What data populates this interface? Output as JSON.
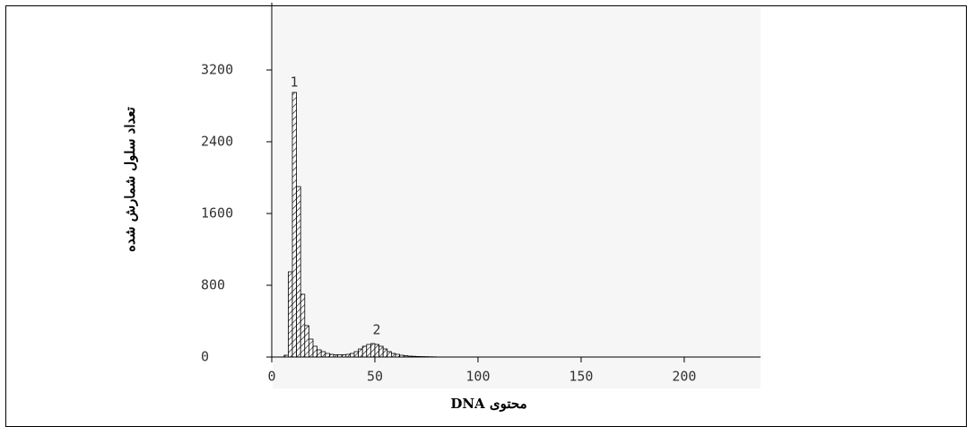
{
  "chart_data": {
    "type": "histogram",
    "x_label": "محتوی DNA",
    "y_label": "تعداد سلول شمارش شده",
    "annotations": [
      "1",
      "2"
    ],
    "bins": [
      6,
      8,
      10,
      12,
      14,
      16,
      18,
      20,
      22,
      24,
      26,
      28,
      30,
      32,
      34,
      36,
      38,
      40,
      42,
      44,
      46,
      48,
      50,
      52,
      54,
      56,
      58,
      60,
      62,
      64,
      66,
      68,
      70,
      72,
      74,
      76,
      78,
      80
    ],
    "counts": [
      20,
      950,
      2950,
      1900,
      700,
      350,
      200,
      120,
      80,
      60,
      40,
      30,
      25,
      25,
      25,
      30,
      40,
      60,
      90,
      120,
      140,
      150,
      140,
      120,
      90,
      60,
      40,
      30,
      20,
      15,
      10,
      8,
      6,
      5,
      4,
      3,
      2
    ],
    "color": "#000000",
    "xlim": [
      0,
      237
    ],
    "xticks": [
      0,
      50,
      100,
      150,
      200
    ],
    "ylim": [
      0,
      3950
    ],
    "yticks": [
      0,
      800,
      1600,
      2400,
      3200
    ]
  }
}
